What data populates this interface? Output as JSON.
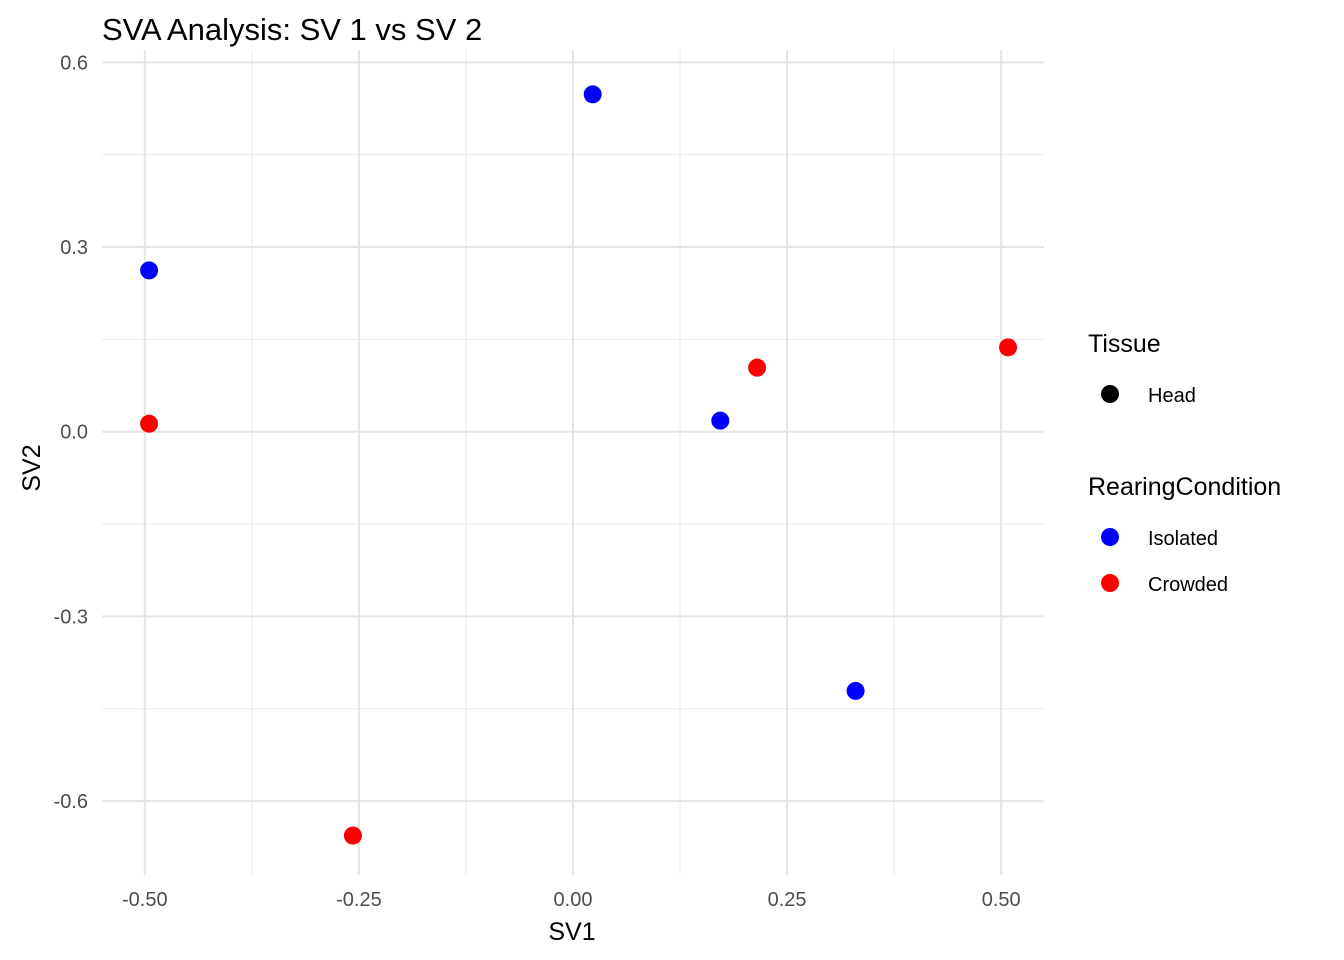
{
  "chart_data": {
    "type": "scatter",
    "title": "SVA Analysis: SV 1  vs SV 2",
    "xlabel": "SV1",
    "ylabel": "SV2",
    "xlim": [
      -0.55,
      0.55
    ],
    "ylim": [
      -0.72,
      0.62
    ],
    "x_ticks": [
      {
        "value": -0.5,
        "label": "-0.50"
      },
      {
        "value": -0.25,
        "label": "-0.25"
      },
      {
        "value": 0.0,
        "label": "0.00"
      },
      {
        "value": 0.25,
        "label": "0.25"
      },
      {
        "value": 0.5,
        "label": "0.50"
      }
    ],
    "y_ticks": [
      {
        "value": 0.6,
        "label": "0.6"
      },
      {
        "value": 0.3,
        "label": "0.3"
      },
      {
        "value": 0.0,
        "label": "0.0"
      },
      {
        "value": -0.3,
        "label": "-0.3"
      },
      {
        "value": -0.6,
        "label": "-0.6"
      }
    ],
    "x_minor": [
      -0.375,
      -0.125,
      0.125,
      0.375
    ],
    "y_minor": [
      0.45,
      0.15,
      -0.15,
      -0.45
    ],
    "grid": true,
    "legend_position": "right",
    "series": [
      {
        "name": "Isolated",
        "color": "#0000ff",
        "points": [
          {
            "x": -0.495,
            "y": 0.262
          },
          {
            "x": 0.023,
            "y": 0.548
          },
          {
            "x": 0.172,
            "y": 0.018
          },
          {
            "x": 0.33,
            "y": -0.421
          }
        ]
      },
      {
        "name": "Crowded",
        "color": "#ff0000",
        "points": [
          {
            "x": -0.495,
            "y": 0.013
          },
          {
            "x": -0.257,
            "y": -0.656
          },
          {
            "x": 0.215,
            "y": 0.104
          },
          {
            "x": 0.508,
            "y": 0.137
          }
        ]
      }
    ],
    "legends": [
      {
        "title": "Tissue",
        "entries": [
          {
            "label": "Head",
            "color": "#000000"
          }
        ]
      },
      {
        "title": "RearingCondition",
        "entries": [
          {
            "label": "Isolated",
            "color": "#0000ff"
          },
          {
            "label": "Crowded",
            "color": "#ff0000"
          }
        ]
      }
    ]
  }
}
